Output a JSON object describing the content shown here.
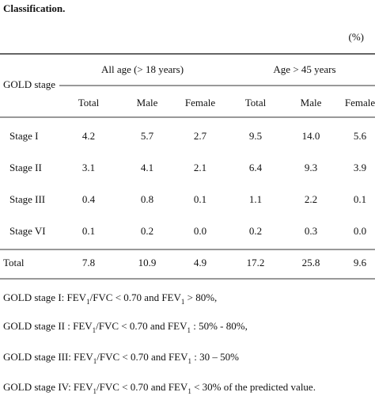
{
  "title": "Classification.",
  "unit": "(%)",
  "table": {
    "stub_header": "GOLD stage",
    "groups": [
      "All age (> 18 years)",
      "Age > 45 years"
    ],
    "columns": [
      "Total",
      "Male",
      "Female",
      "Total",
      "Male",
      "Female"
    ],
    "rows": [
      {
        "label": "Stage I",
        "cells": [
          "4.2",
          "5.7",
          "2.7",
          "9.5",
          "14.0",
          "5.6"
        ]
      },
      {
        "label": "Stage II",
        "cells": [
          "3.1",
          "4.1",
          "2.1",
          "6.4",
          "9.3",
          "3.9"
        ]
      },
      {
        "label": "Stage III",
        "cells": [
          "0.4",
          "0.8",
          "0.1",
          "1.1",
          "2.2",
          "0.1"
        ]
      },
      {
        "label": "Stage VI",
        "cells": [
          "0.1",
          "0.2",
          "0.0",
          "0.2",
          "0.3",
          "0.0"
        ]
      }
    ],
    "total": {
      "label": "Total",
      "cells": [
        "7.8",
        "10.9",
        "4.9",
        "17.2",
        "25.8",
        "9.6"
      ]
    }
  },
  "footnotes": [
    [
      "GOLD stage I: FEV",
      "1",
      "/FVC < 0.70 and FEV",
      "1",
      " > 80%,"
    ],
    [
      "GOLD stage II : FEV",
      "1",
      "/FVC < 0.70 and FEV",
      "1",
      " : 50% - 80%,"
    ],
    [
      "GOLD stage III: FEV",
      "1",
      "/FVC < 0.70 and FEV",
      "1",
      " : 30 – 50%"
    ],
    [
      "GOLD stage IV: FEV",
      "1",
      "/FVC < 0.70 and FEV",
      "1",
      " < 30% of the predicted value."
    ]
  ]
}
